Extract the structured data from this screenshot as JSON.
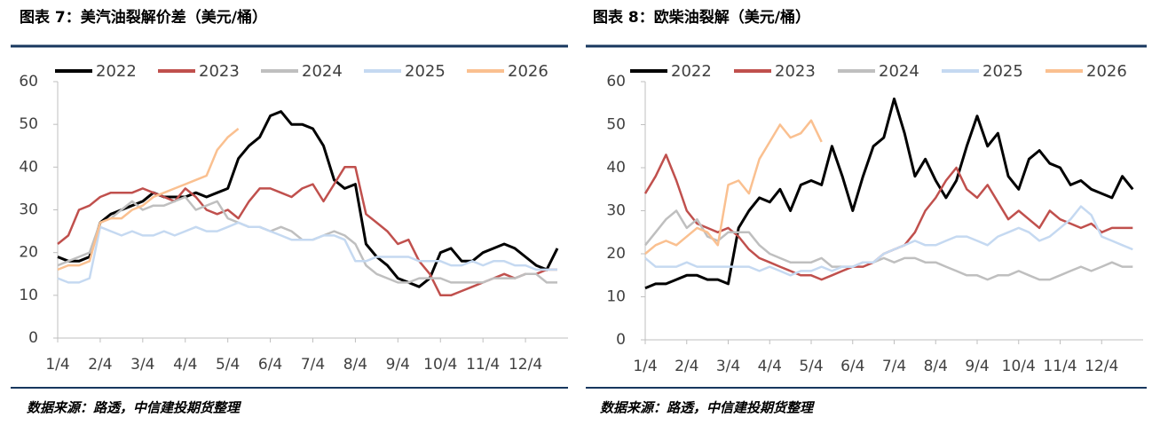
{
  "chart_data": [
    {
      "type": "line",
      "title": "图表 7：美汽油裂解价差（美元/桶）",
      "source": "数据来源：路透，中信建投期货整理",
      "categories": [
        "1/4",
        null,
        null,
        null,
        "2/4",
        null,
        null,
        null,
        "3/4",
        null,
        null,
        null,
        "4/4",
        null,
        null,
        null,
        "5/4",
        null,
        null,
        null,
        "6/4",
        null,
        null,
        null,
        "7/4",
        null,
        null,
        null,
        "8/4",
        null,
        null,
        null,
        "9/4",
        null,
        null,
        null,
        "10/4",
        null,
        null,
        null,
        "11/4",
        null,
        null,
        null,
        "12/4",
        null,
        null,
        null
      ],
      "ylim": [
        0,
        60
      ],
      "yticks": [
        0,
        10,
        20,
        30,
        40,
        50,
        60
      ],
      "grid": false,
      "legend": "top",
      "series": [
        {
          "name": "2022",
          "color": "#000000",
          "values": [
            19,
            18,
            18,
            19,
            27,
            29,
            30,
            31,
            32,
            34,
            33,
            33,
            33,
            34,
            33,
            34,
            35,
            42,
            45,
            47,
            52,
            53,
            50,
            50,
            49,
            45,
            37,
            35,
            36,
            22,
            19,
            17,
            14,
            13,
            12,
            14,
            20,
            21,
            18,
            18,
            20,
            21,
            22,
            21,
            19,
            17,
            16,
            21
          ]
        },
        {
          "name": "2023",
          "color": "#c0504d",
          "values": [
            22,
            24,
            30,
            31,
            33,
            34,
            34,
            34,
            35,
            34,
            33,
            32,
            35,
            33,
            30,
            29,
            30,
            28,
            32,
            35,
            35,
            34,
            33,
            35,
            36,
            32,
            36,
            40,
            40,
            29,
            27,
            25,
            22,
            23,
            18,
            15,
            10,
            10,
            11,
            12,
            13,
            14,
            15,
            14,
            15,
            15,
            16,
            16
          ]
        },
        {
          "name": "2024",
          "color": "#bfbfbf",
          "values": [
            17,
            18,
            19,
            20,
            27,
            28,
            30,
            32,
            30,
            31,
            31,
            32,
            33,
            30,
            31,
            32,
            28,
            27,
            26,
            26,
            25,
            26,
            25,
            23,
            23,
            24,
            25,
            24,
            22,
            17,
            15,
            14,
            13,
            13,
            14,
            14,
            14,
            13,
            13,
            13,
            13,
            14,
            14,
            14,
            15,
            15,
            13,
            13
          ]
        },
        {
          "name": "2025",
          "color": "#c5d9f1",
          "values": [
            14,
            13,
            13,
            14,
            26,
            25,
            24,
            25,
            24,
            24,
            25,
            24,
            25,
            26,
            25,
            25,
            26,
            27,
            26,
            26,
            25,
            24,
            23,
            23,
            23,
            24,
            24,
            23,
            18,
            18,
            19,
            19,
            19,
            19,
            18,
            18,
            18,
            17,
            17,
            18,
            17,
            18,
            18,
            17,
            17,
            16,
            16,
            16
          ]
        },
        {
          "name": "2026",
          "color": "#fac090",
          "values": [
            16,
            17,
            17,
            18,
            27,
            28,
            28,
            30,
            31,
            33,
            34,
            35,
            36,
            37,
            38,
            44,
            47,
            49,
            null,
            null,
            null,
            null,
            null,
            null,
            null,
            null,
            null,
            null,
            null,
            null,
            null,
            null,
            null,
            null,
            null,
            null,
            null,
            null,
            null,
            null,
            null,
            null,
            null,
            null,
            null,
            null,
            null,
            null
          ]
        }
      ]
    },
    {
      "type": "line",
      "title": "图表 8：欧柴油裂解（美元/桶）",
      "source": "数据来源：路透，中信建投期货整理",
      "categories": [
        "1/4",
        null,
        null,
        null,
        "2/4",
        null,
        null,
        null,
        "3/4",
        null,
        null,
        null,
        "4/4",
        null,
        null,
        null,
        "5/4",
        null,
        null,
        null,
        "6/4",
        null,
        null,
        null,
        "7/4",
        null,
        null,
        null,
        "8/4",
        null,
        null,
        null,
        "9/4",
        null,
        null,
        null,
        "10/4",
        null,
        null,
        null,
        "11/4",
        null,
        null,
        null,
        "12/4",
        null,
        null,
        null
      ],
      "ylim": [
        0,
        60
      ],
      "yticks": [
        0,
        10,
        20,
        30,
        40,
        50,
        60
      ],
      "grid": false,
      "legend": "top",
      "series": [
        {
          "name": "2022",
          "color": "#000000",
          "values": [
            12,
            13,
            13,
            14,
            15,
            15,
            14,
            14,
            13,
            26,
            30,
            33,
            32,
            35,
            30,
            36,
            37,
            36,
            45,
            38,
            30,
            38,
            45,
            47,
            56,
            48,
            38,
            42,
            37,
            33,
            37,
            45,
            52,
            45,
            48,
            38,
            35,
            42,
            44,
            41,
            40,
            36,
            37,
            35,
            34,
            33,
            38,
            35
          ]
        },
        {
          "name": "2023",
          "color": "#c0504d",
          "values": [
            34,
            38,
            43,
            37,
            30,
            27,
            26,
            25,
            26,
            24,
            21,
            19,
            18,
            17,
            16,
            15,
            15,
            14,
            15,
            16,
            17,
            17,
            18,
            20,
            21,
            22,
            25,
            30,
            33,
            37,
            40,
            35,
            33,
            36,
            32,
            28,
            30,
            28,
            26,
            30,
            28,
            27,
            26,
            27,
            25,
            26,
            26,
            26
          ]
        },
        {
          "name": "2024",
          "color": "#bfbfbf",
          "values": [
            22,
            25,
            28,
            30,
            26,
            28,
            24,
            23,
            25,
            25,
            25,
            22,
            20,
            19,
            18,
            18,
            18,
            19,
            17,
            17,
            17,
            18,
            18,
            19,
            18,
            19,
            19,
            18,
            18,
            17,
            16,
            15,
            15,
            14,
            15,
            15,
            16,
            15,
            14,
            14,
            15,
            16,
            17,
            16,
            17,
            18,
            17,
            17
          ]
        },
        {
          "name": "2025",
          "color": "#c5d9f1",
          "values": [
            19,
            17,
            17,
            17,
            18,
            17,
            17,
            17,
            17,
            17,
            17,
            16,
            17,
            16,
            15,
            16,
            16,
            17,
            16,
            17,
            17,
            18,
            18,
            20,
            21,
            22,
            23,
            22,
            22,
            23,
            24,
            24,
            23,
            22,
            24,
            25,
            26,
            25,
            23,
            24,
            26,
            28,
            31,
            29,
            24,
            23,
            22,
            21
          ]
        },
        {
          "name": "2026",
          "color": "#fac090",
          "values": [
            20,
            22,
            23,
            22,
            24,
            26,
            25,
            22,
            36,
            37,
            34,
            42,
            46,
            50,
            47,
            48,
            51,
            46,
            null,
            null,
            null,
            null,
            null,
            null,
            null,
            null,
            null,
            null,
            null,
            null,
            null,
            null,
            null,
            null,
            null,
            null,
            null,
            null,
            null,
            null,
            null,
            null,
            null,
            null,
            null,
            null,
            null,
            null
          ]
        }
      ]
    }
  ]
}
